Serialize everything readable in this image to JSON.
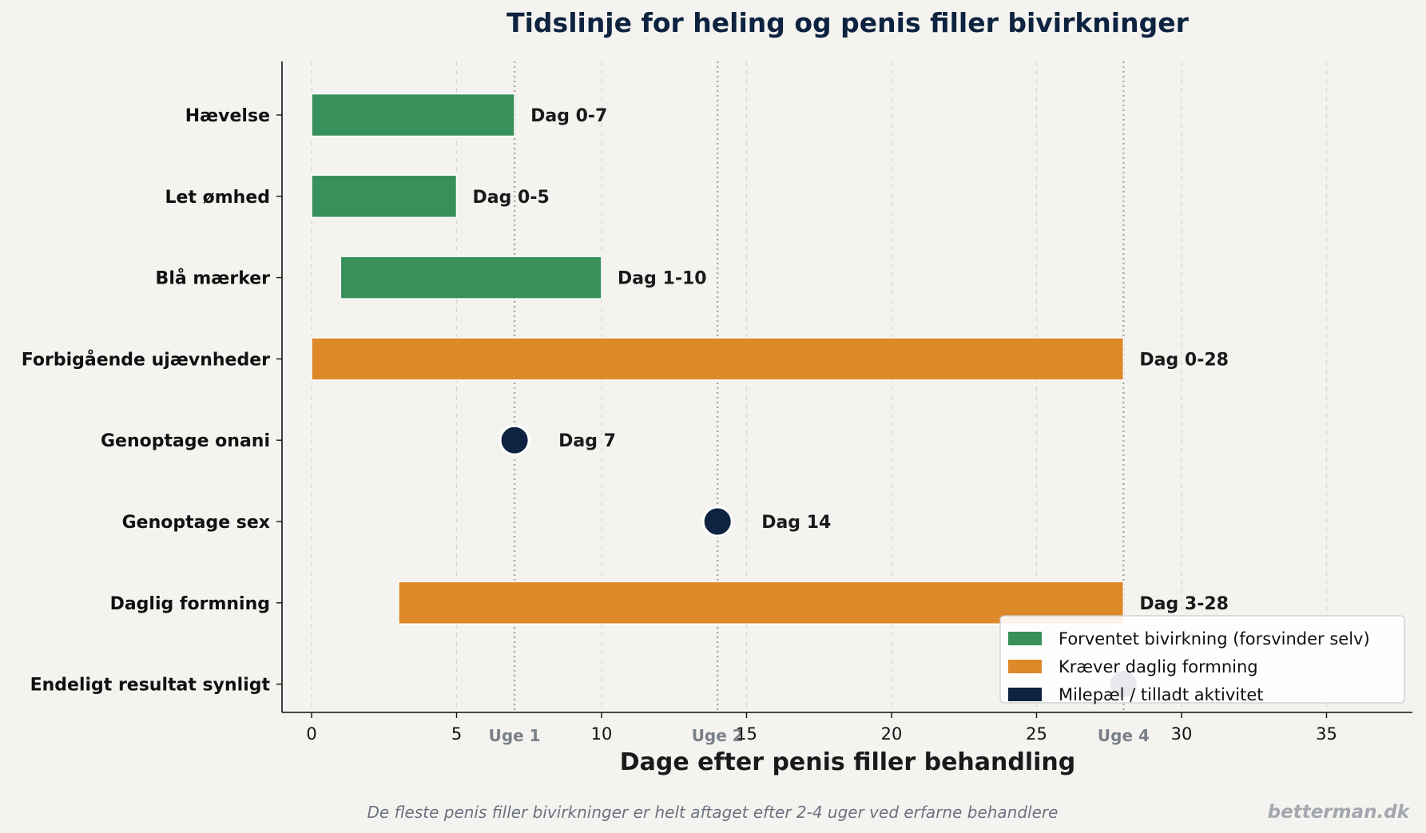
{
  "chart_data": {
    "type": "bar",
    "orientation": "horizontal",
    "title": "Tidslinje for heling og penis filler bivirkninger",
    "xlabel": "Dage efter penis filler behandling",
    "ylabel": "",
    "xlim": [
      -1,
      38
    ],
    "xticks": [
      0,
      5,
      10,
      15,
      20,
      25,
      30,
      35
    ],
    "grid": "vertical dashed",
    "legend_position": "lower-right",
    "categories": [
      "Hævelse",
      "Let ømhed",
      "Blå mærker",
      "Forbigående ujævnheder",
      "Genoptage onani",
      "Genoptage sex",
      "Daglig formning",
      "Endeligt resultat synligt"
    ],
    "series": [
      {
        "name": "Forventet bivirkning (forsvinder selv)",
        "color": "#38905a",
        "kind": "range"
      },
      {
        "name": "Kræver daglig formning",
        "color": "#dd8929",
        "kind": "range"
      },
      {
        "name": "Milepæl / tilladt aktivitet",
        "color": "#0d2340",
        "kind": "milestone"
      }
    ],
    "items": [
      {
        "category": "Hævelse",
        "series": 0,
        "start": 0,
        "end": 7,
        "label": "Dag 0-7"
      },
      {
        "category": "Let ømhed",
        "series": 0,
        "start": 0,
        "end": 5,
        "label": "Dag 0-5"
      },
      {
        "category": "Blå mærker",
        "series": 0,
        "start": 1,
        "end": 10,
        "label": "Dag 1-10"
      },
      {
        "category": "Forbigående ujævnheder",
        "series": 1,
        "start": 0,
        "end": 28,
        "label": "Dag 0-28"
      },
      {
        "category": "Genoptage onani",
        "series": 2,
        "day": 7,
        "label": "Dag 7"
      },
      {
        "category": "Genoptage sex",
        "series": 2,
        "day": 14,
        "label": "Dag 14"
      },
      {
        "category": "Daglig formning",
        "series": 1,
        "start": 3,
        "end": 28,
        "label": "Dag 3-28"
      },
      {
        "category": "Endeligt resultat synligt",
        "series": 2,
        "day": 28,
        "label": ""
      }
    ],
    "week_markers": [
      {
        "day": 7,
        "label": "Uge 1"
      },
      {
        "day": 14,
        "label": "Uge 2"
      },
      {
        "day": 28,
        "label": "Uge 4"
      }
    ]
  },
  "footnote": "De fleste penis filler bivirkninger er helt aftaget efter 2-4 uger ved erfarne behandlere",
  "brand": "betterman.dk"
}
